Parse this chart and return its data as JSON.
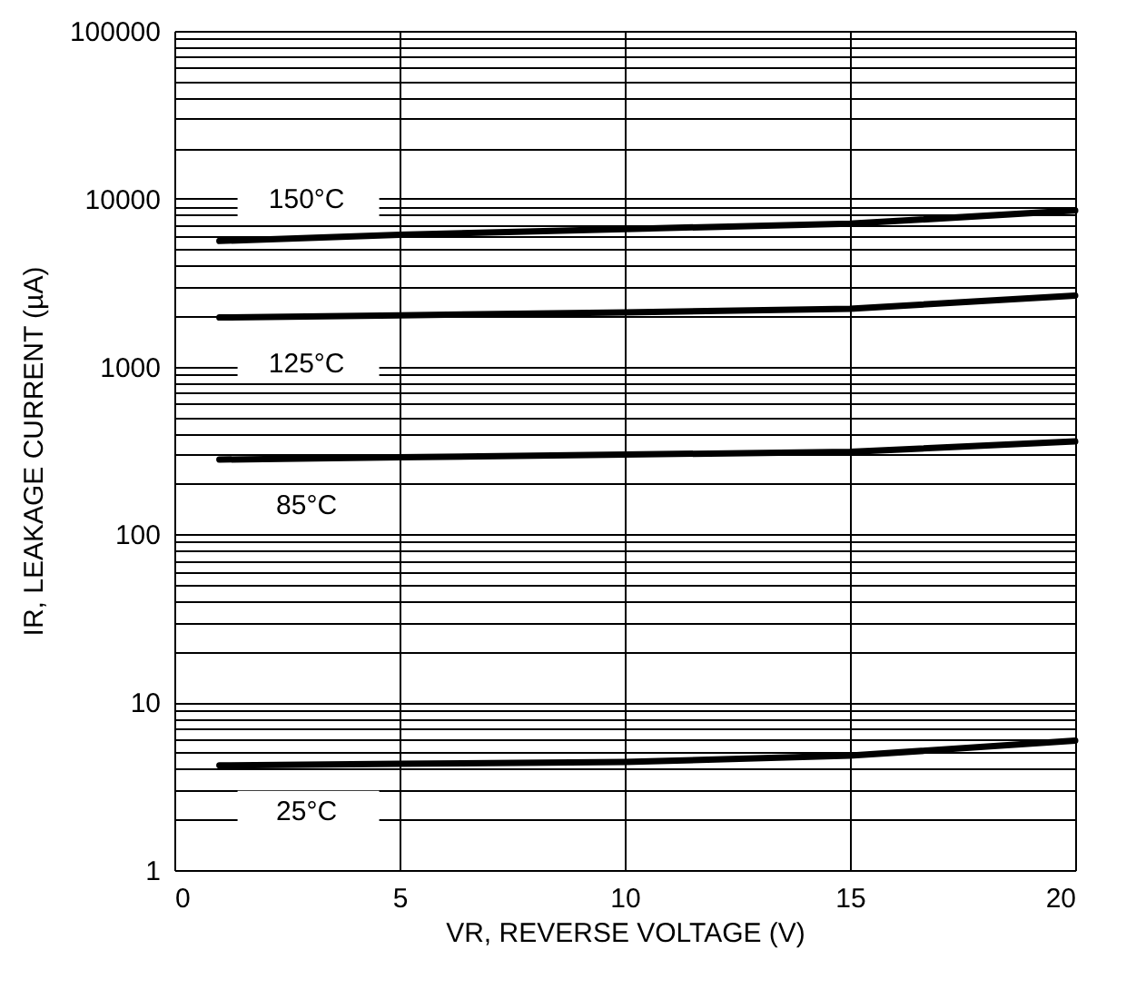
{
  "chart_data": {
    "type": "line",
    "xlabel": "VR, REVERSE VOLTAGE (V)",
    "ylabel": "IR, LEAKAGE CURRENT (µA)",
    "x": [
      1,
      5,
      10,
      15,
      20
    ],
    "series": [
      {
        "name": "150°C",
        "color": "#000000",
        "values": [
          5600,
          6100,
          6600,
          7100,
          8500
        ]
      },
      {
        "name": "125°C",
        "color": "#000000",
        "values": [
          1960,
          2020,
          2100,
          2210,
          2650
        ]
      },
      {
        "name": "85°C",
        "color": "#000000",
        "values": [
          279,
          288,
          299,
          310,
          358
        ]
      },
      {
        "name": "25°C",
        "color": "#000000",
        "values": [
          4.2,
          4.3,
          4.4,
          4.8,
          5.9
        ]
      }
    ],
    "log": "y",
    "xlim": [
      0,
      20
    ],
    "xticks": [
      0,
      5,
      10,
      15,
      20
    ],
    "ylim": [
      1,
      100000
    ],
    "yticks": [
      1,
      {
        "value": 2,
        "label": null
      },
      {
        "value": 3,
        "label": null
      },
      {
        "value": 4,
        "label": null
      },
      {
        "value": 5,
        "label": null
      },
      {
        "value": 6,
        "label": null
      },
      {
        "value": 7,
        "label": null
      },
      {
        "value": 8,
        "label": null
      },
      {
        "value": 9,
        "label": null
      },
      10,
      {
        "value": 20,
        "label": null
      },
      {
        "value": 30,
        "label": null
      },
      {
        "value": 40,
        "label": null
      },
      {
        "value": 50,
        "label": null
      },
      {
        "value": 60,
        "label": null
      },
      {
        "value": 70,
        "label": null
      },
      {
        "value": 80,
        "label": null
      },
      {
        "value": 90,
        "label": null
      },
      100,
      {
        "value": 200,
        "label": null
      },
      {
        "value": 300,
        "label": null
      },
      {
        "value": 400,
        "label": null
      },
      {
        "value": 500,
        "label": null
      },
      {
        "value": 600,
        "label": null
      },
      {
        "value": 700,
        "label": null
      },
      {
        "value": 800,
        "label": null
      },
      {
        "value": 900,
        "label": null
      },
      1000,
      {
        "value": 2000,
        "label": null
      },
      {
        "value": 3000,
        "label": null
      },
      {
        "value": 4000,
        "label": null
      },
      {
        "value": 5000,
        "label": null
      },
      {
        "value": 6000,
        "label": null
      },
      {
        "value": 7000,
        "label": null
      },
      {
        "value": 8000,
        "label": null
      },
      {
        "value": 9000,
        "label": null
      },
      10000,
      {
        "value": 20000,
        "label": null
      },
      {
        "value": 30000,
        "label": null
      },
      {
        "value": 40000,
        "label": null
      },
      {
        "value": 50000,
        "label": null
      },
      {
        "value": 60000,
        "label": null
      },
      {
        "value": 70000,
        "label": null
      },
      {
        "value": 80000,
        "label": null
      },
      {
        "value": 90000,
        "label": null
      },
      100000
    ],
    "grid": true,
    "legend": false,
    "marker": "none",
    "line_style": "solid"
  }
}
